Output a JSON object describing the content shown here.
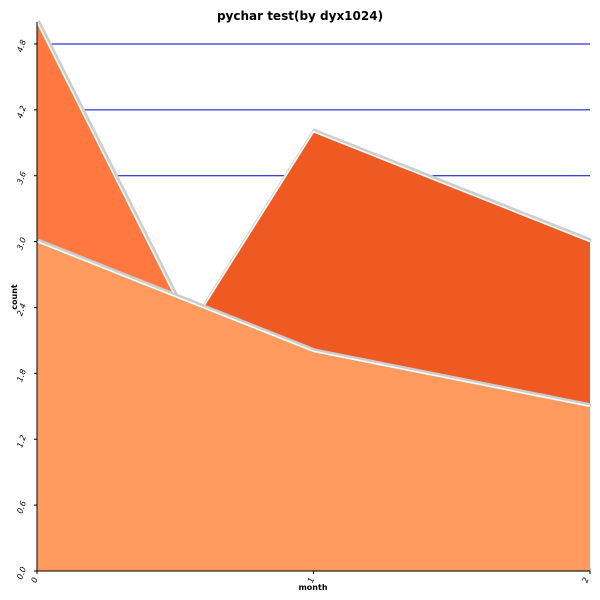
{
  "chart_data": {
    "type": "area",
    "title": "pychar test(by dyx1024)",
    "xlabel": "month",
    "ylabel": "count",
    "x": [
      0,
      1,
      2
    ],
    "x_tick_labels": [
      "0",
      "1",
      "2"
    ],
    "y_tick_labels": [
      "0.0",
      "0.6",
      "1.2",
      "1.8",
      "2.4",
      "3.0",
      "3.6",
      "4.2",
      "4.8"
    ],
    "ylim": [
      0,
      5.0
    ],
    "xlim": [
      0,
      2
    ],
    "grid_lines_y": [
      3.6,
      4.2,
      4.8
    ],
    "series": [
      {
        "values": [
          3.0,
          2.0,
          1.5
        ],
        "color": "#ff9a5e"
      },
      {
        "values": [
          5.0,
          0.0,
          0.0
        ],
        "color": "#ff7840"
      },
      {
        "values": [
          0.0,
          4.0,
          3.0
        ],
        "color": "#ee5a22"
      }
    ],
    "colors": {
      "grid": "#0000cc",
      "axis": "#000000",
      "outline": "#ffffff",
      "shadow": "#cccccc"
    }
  }
}
